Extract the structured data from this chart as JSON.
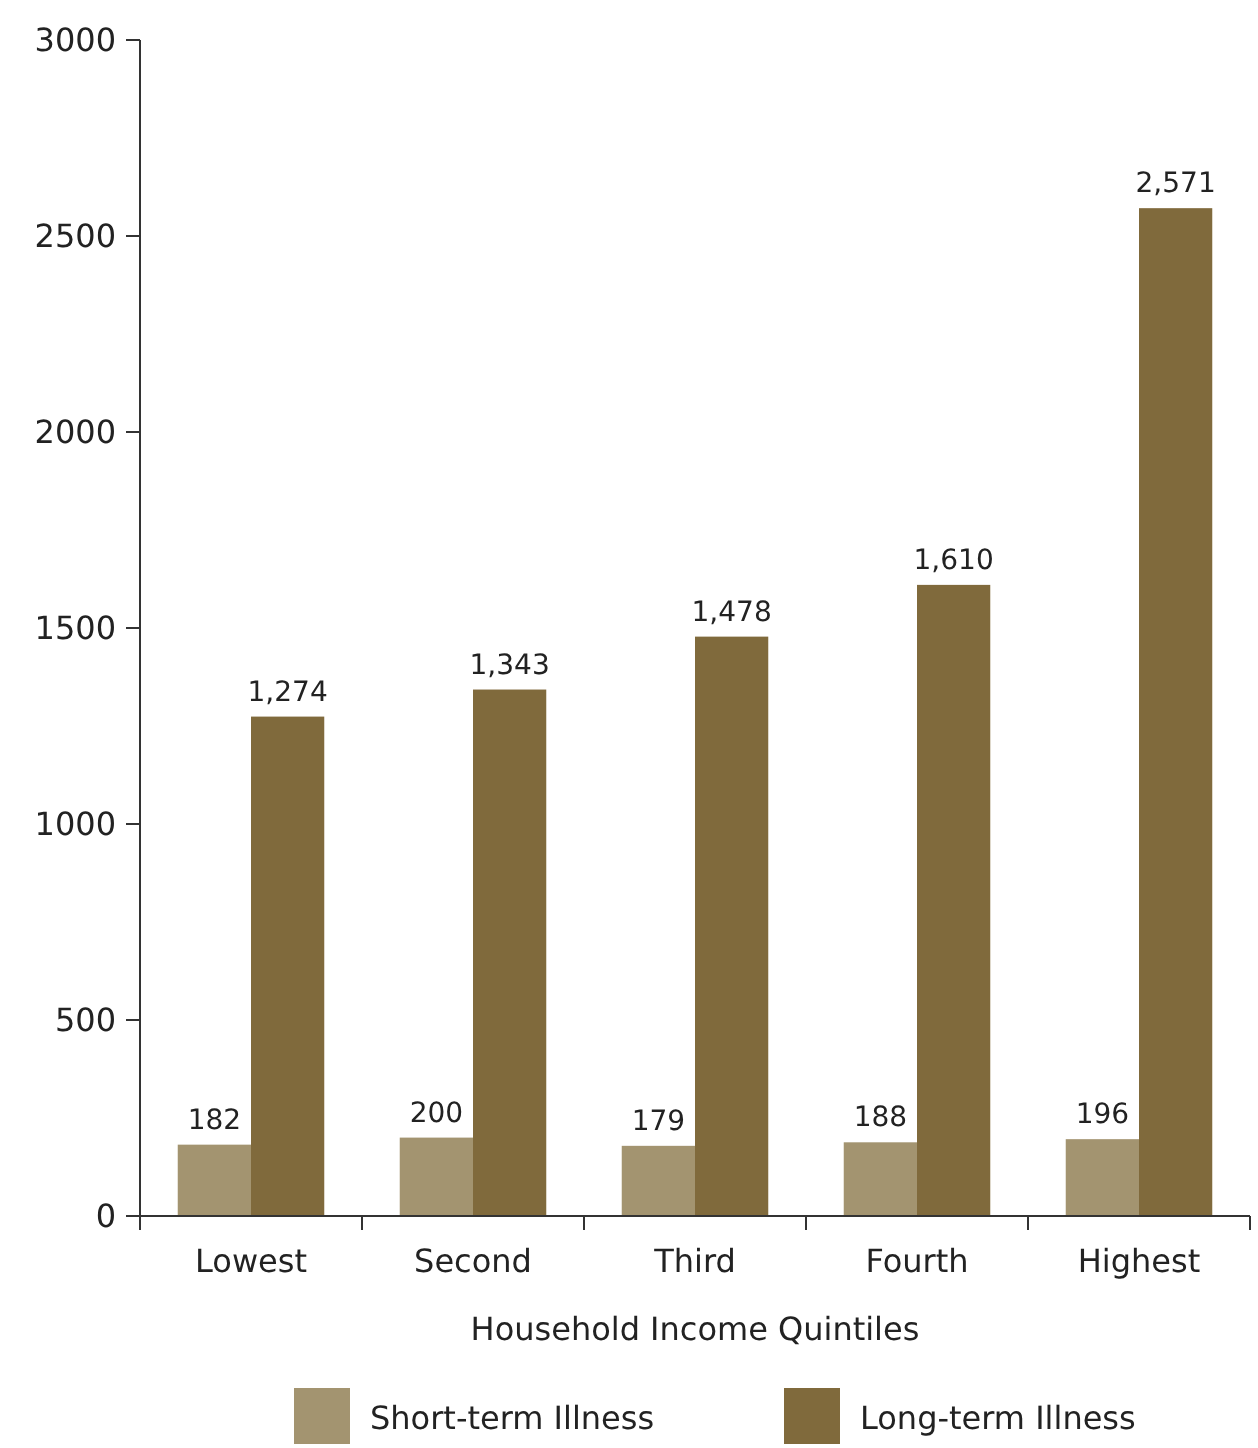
{
  "chart_data": {
    "type": "bar",
    "xlabel": "Household Income Quintiles",
    "categories": [
      "Lowest",
      "Second",
      "Third",
      "Fourth",
      "Highest"
    ],
    "series": [
      {
        "name": "Short-term Illness",
        "color": "#a39470",
        "values": [
          182,
          200,
          179,
          188,
          196
        ],
        "value_labels": [
          "182",
          "200",
          "179",
          "188",
          "196"
        ]
      },
      {
        "name": "Long-term Illness",
        "color": "#806a3c",
        "values": [
          1274,
          1343,
          1478,
          1610,
          2571
        ],
        "value_labels": [
          "1,274",
          "1,343",
          "1,478",
          "1,610",
          "2,571"
        ]
      }
    ],
    "ylim": [
      0,
      3000
    ],
    "yticks": [
      0,
      500,
      1000,
      1500,
      2000,
      2500,
      3000
    ],
    "grid": false,
    "legend": "bottom"
  }
}
